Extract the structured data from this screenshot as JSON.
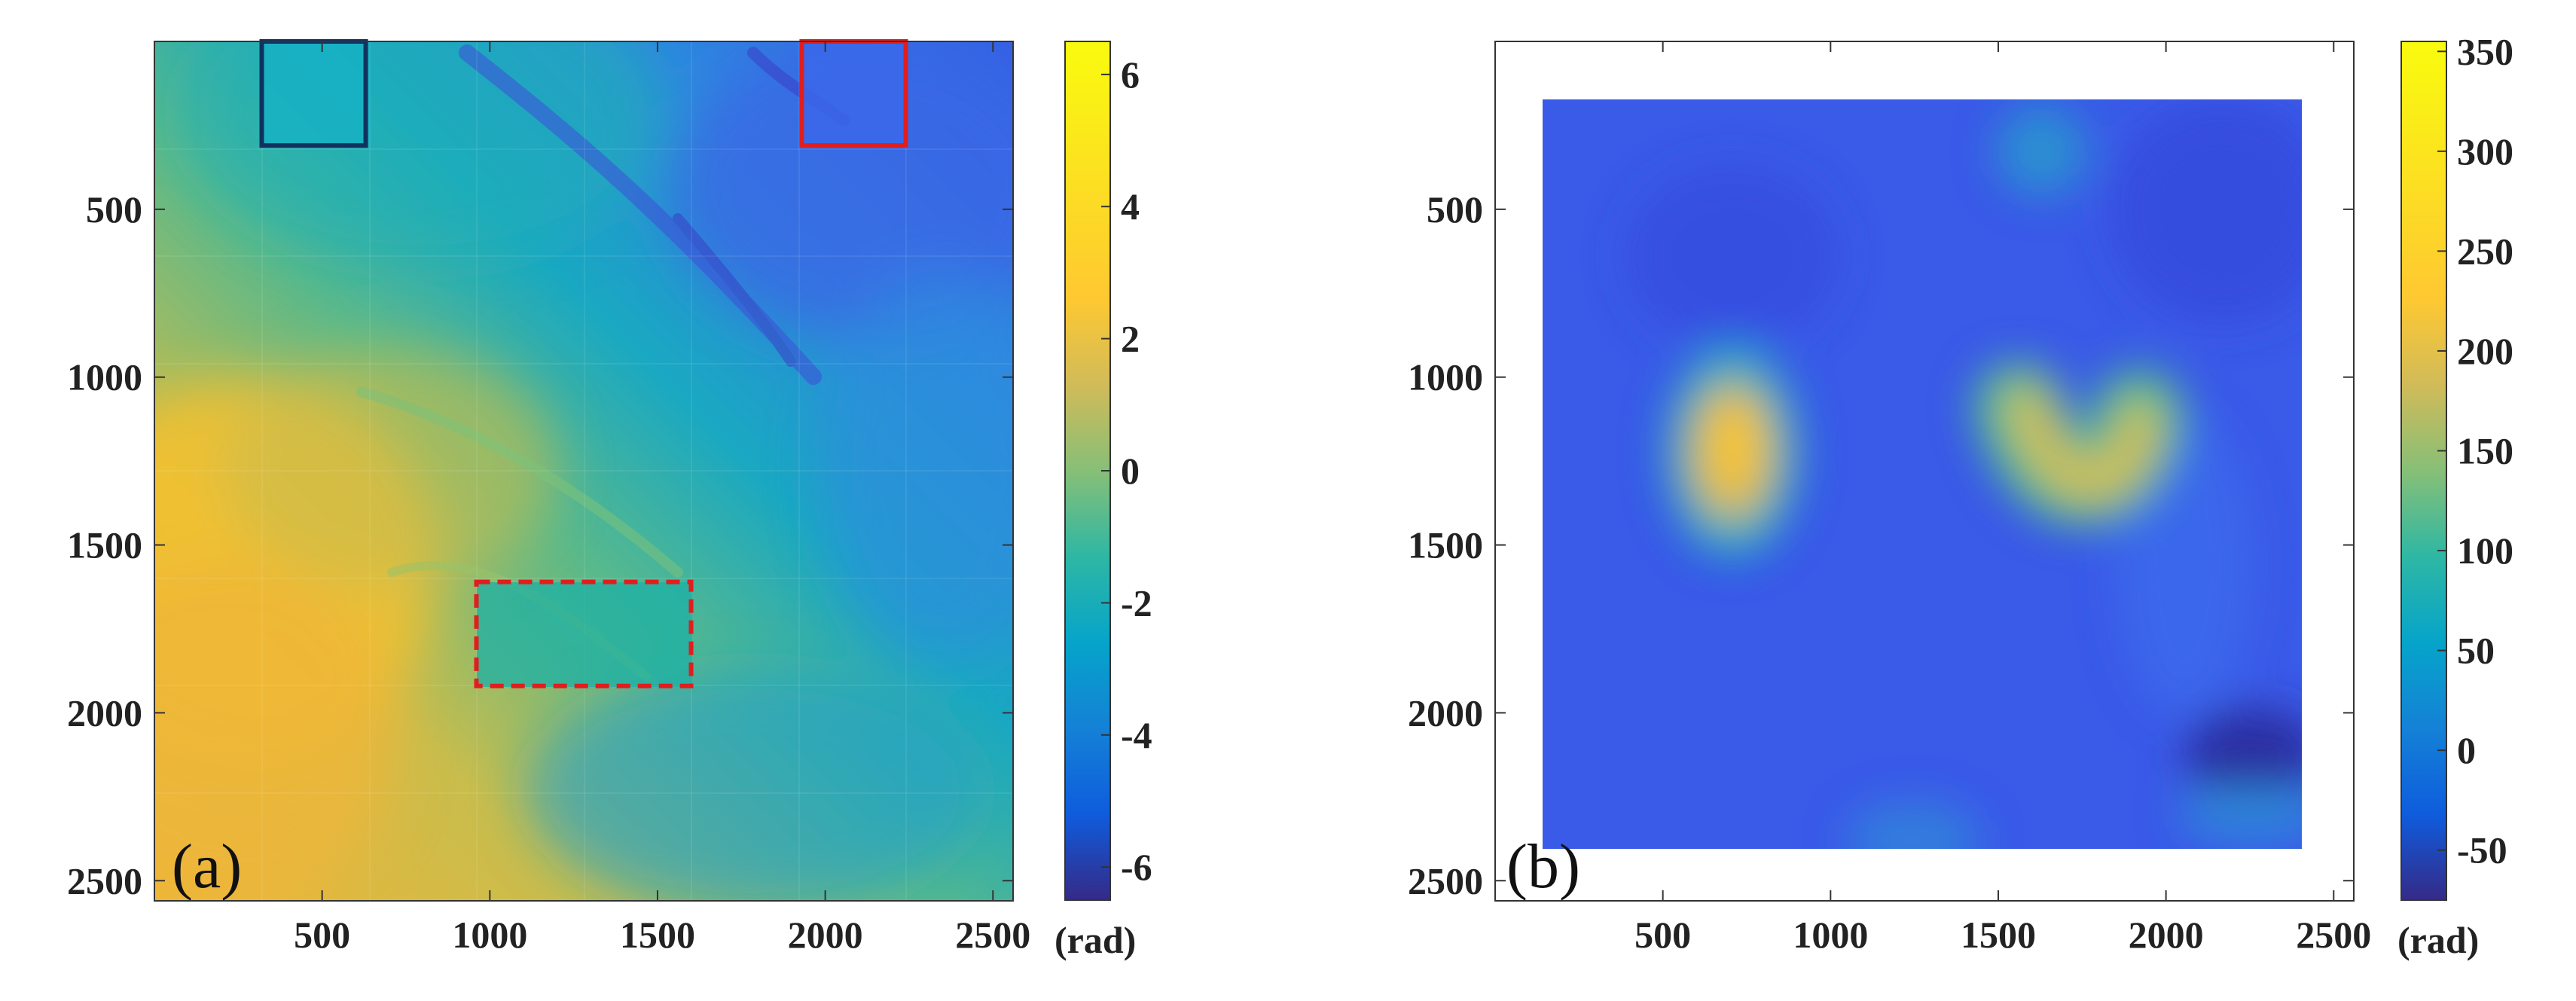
{
  "chart_data": [
    {
      "type": "heatmap",
      "panel_label": "(a)",
      "title": "",
      "xlabel": "",
      "ylabel": "",
      "xlim": [
        0,
        2560
      ],
      "ylim": [
        0,
        2560
      ],
      "x_ticks": [
        500,
        1000,
        1500,
        2000,
        2500
      ],
      "y_ticks": [
        500,
        1000,
        1500,
        2000,
        2500
      ],
      "y_axis_reversed": true,
      "colorbar": {
        "colormap": "parula",
        "range": [
          -6.5,
          6.5
        ],
        "ticks": [
          6,
          4,
          2,
          0,
          -2,
          -4,
          -6
        ],
        "unit_label": "(rad)"
      },
      "rectangles": [
        {
          "x0": 320,
          "x1": 630,
          "y0": 0,
          "y1": 310,
          "color": "#10325f",
          "style": "solid"
        },
        {
          "x0": 1930,
          "x1": 2240,
          "y0": 0,
          "y1": 310,
          "color": "#e11d1d",
          "style": "solid"
        },
        {
          "x0": 960,
          "x1": 1600,
          "y0": 1610,
          "y1": 1920,
          "color": "#e11d1d",
          "style": "dashed"
        }
      ]
    },
    {
      "type": "heatmap",
      "panel_label": "(b)",
      "title": "",
      "xlabel": "",
      "ylabel": "",
      "xlim": [
        0,
        2560
      ],
      "ylim": [
        0,
        2560
      ],
      "x_ticks": [
        500,
        1000,
        1500,
        2000,
        2500
      ],
      "y_ticks": [
        500,
        1000,
        1500,
        2000,
        2500
      ],
      "y_axis_reversed": true,
      "data_extent": {
        "x0": 160,
        "x1": 2400,
        "y0": 160,
        "y1": 2400
      },
      "colorbar": {
        "colormap": "parula",
        "range": [
          -75,
          355
        ],
        "ticks": [
          350,
          300,
          250,
          200,
          150,
          100,
          50,
          0,
          -50
        ],
        "unit_label": "(rad)"
      }
    }
  ]
}
